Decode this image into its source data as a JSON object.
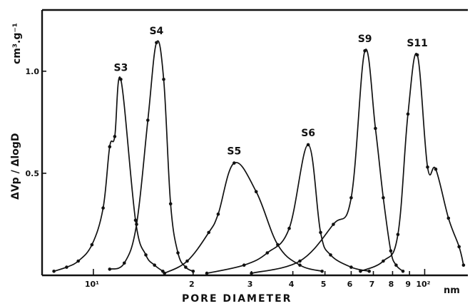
{
  "chart_data": {
    "type": "line",
    "title": "",
    "xlabel": "PORE DIAMETER",
    "x_unit": "nm",
    "ylabel": "ΔVp / ΔlogD",
    "y_unit": "cm³.g⁻¹",
    "x_scale": "log",
    "xlim": [
      7.0,
      135
    ],
    "ylim": [
      0,
      1.3
    ],
    "grid": false,
    "y_ticks": [
      {
        "value": 0.5,
        "label": "0.5"
      },
      {
        "value": 1.0,
        "label": "1.0"
      }
    ],
    "x_ticks": [
      {
        "value": 10,
        "label": "10¹",
        "major": true
      },
      {
        "value": 20,
        "label": "2",
        "major": false
      },
      {
        "value": 30,
        "label": "3",
        "major": false
      },
      {
        "value": 40,
        "label": "4",
        "major": false
      },
      {
        "value": 50,
        "label": "5",
        "major": false
      },
      {
        "value": 60,
        "label": "6",
        "major": false
      },
      {
        "value": 70,
        "label": "7",
        "major": false
      },
      {
        "value": 80,
        "label": "8",
        "major": false
      },
      {
        "value": 90,
        "label": "9",
        "major": false
      },
      {
        "value": 100,
        "label": "10²",
        "major": true
      }
    ],
    "series": [
      {
        "name": "S3",
        "peak_x": 12.1,
        "peak_y": 0.96,
        "points": [
          [
            7.6,
            0.02
          ],
          [
            8.3,
            0.04
          ],
          [
            9.0,
            0.07
          ],
          [
            9.9,
            0.15
          ],
          [
            10.7,
            0.33
          ],
          [
            11.2,
            0.63
          ],
          [
            11.6,
            0.68
          ],
          [
            12.1,
            0.96
          ],
          [
            13.4,
            0.27
          ],
          [
            14.4,
            0.1
          ],
          [
            15.3,
            0.05
          ],
          [
            16.2,
            0.02
          ]
        ]
      },
      {
        "name": "S4",
        "peak_x": 15.5,
        "peak_y": 1.14,
        "points": [
          [
            11.2,
            0.03
          ],
          [
            12.4,
            0.06
          ],
          [
            13.5,
            0.25
          ],
          [
            14.6,
            0.76
          ],
          [
            15.5,
            1.14
          ],
          [
            16.3,
            0.96
          ],
          [
            17.1,
            0.35
          ],
          [
            18.0,
            0.11
          ],
          [
            19.0,
            0.04
          ],
          [
            20.0,
            0.02
          ]
        ]
      },
      {
        "name": "S5",
        "peak_x": 26.6,
        "peak_y": 0.55,
        "points": [
          [
            16.4,
            0.01
          ],
          [
            19.2,
            0.07
          ],
          [
            22.3,
            0.21
          ],
          [
            23.8,
            0.3
          ],
          [
            26.6,
            0.55
          ],
          [
            31.0,
            0.41
          ],
          [
            36.0,
            0.15
          ],
          [
            42.0,
            0.05
          ],
          [
            49.0,
            0.02
          ]
        ]
      },
      {
        "name": "S6",
        "peak_x": 44.5,
        "peak_y": 0.64,
        "points": [
          [
            22.0,
            0.01
          ],
          [
            28.5,
            0.05
          ],
          [
            33.5,
            0.11
          ],
          [
            39.0,
            0.23
          ],
          [
            44.5,
            0.64
          ],
          [
            48.5,
            0.21
          ],
          [
            52.0,
            0.1
          ],
          [
            60.0,
            0.04
          ],
          [
            68.0,
            0.02
          ]
        ]
      },
      {
        "name": "S9",
        "peak_x": 66.0,
        "peak_y": 1.1,
        "points": [
          [
            30.0,
            0.01
          ],
          [
            42.0,
            0.07
          ],
          [
            53.0,
            0.25
          ],
          [
            60.0,
            0.38
          ],
          [
            66.0,
            1.1
          ],
          [
            71.0,
            0.72
          ],
          [
            75.0,
            0.38
          ],
          [
            79.0,
            0.12
          ],
          [
            82.0,
            0.05
          ],
          [
            86.0,
            0.02
          ]
        ]
      },
      {
        "name": "S11",
        "peak_x": 95.0,
        "peak_y": 1.08,
        "points": [
          [
            64.0,
            0.02
          ],
          [
            75.0,
            0.07
          ],
          [
            83.0,
            0.2
          ],
          [
            89.0,
            0.79
          ],
          [
            95.0,
            1.08
          ],
          [
            102.0,
            0.53
          ],
          [
            108.0,
            0.52
          ],
          [
            118.0,
            0.28
          ],
          [
            127.0,
            0.14
          ],
          [
            131.0,
            0.05
          ]
        ]
      }
    ]
  }
}
